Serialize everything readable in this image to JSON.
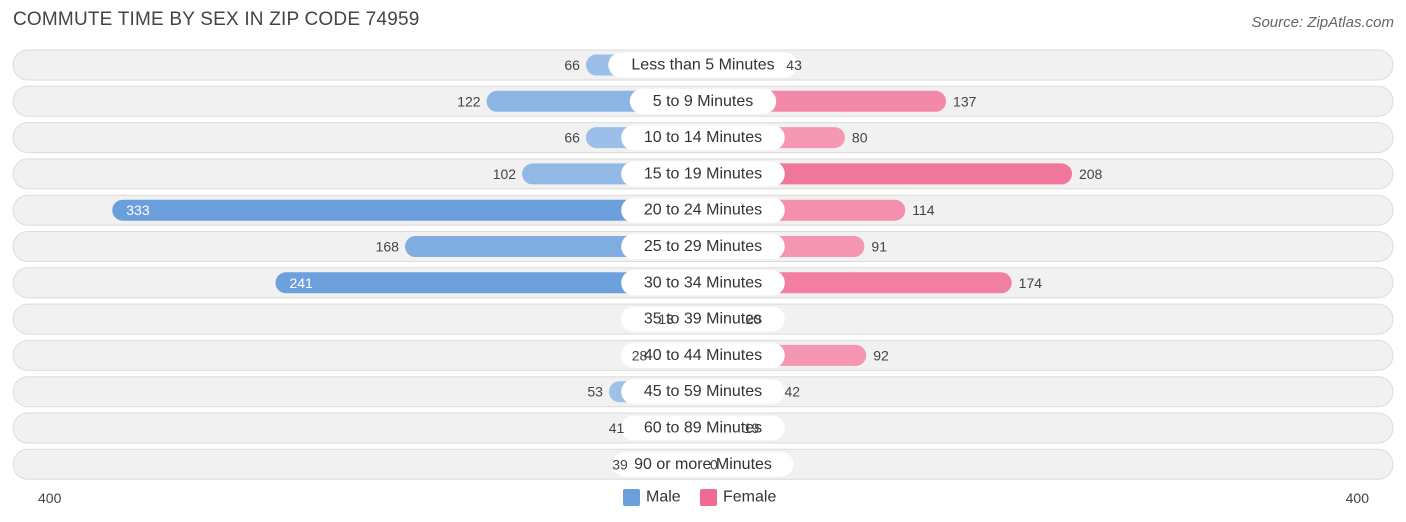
{
  "header": {
    "title": "COMMUTE TIME BY SEX IN ZIP CODE 74959",
    "source": "Source: ZipAtlas.com"
  },
  "chart_data": {
    "type": "bar",
    "orientation": "horizontal-diverging",
    "title": "COMMUTE TIME BY SEX IN ZIP CODE 74959",
    "categories": [
      "Less than 5 Minutes",
      "5 to 9 Minutes",
      "10 to 14 Minutes",
      "15 to 19 Minutes",
      "20 to 24 Minutes",
      "25 to 29 Minutes",
      "30 to 34 Minutes",
      "35 to 39 Minutes",
      "40 to 44 Minutes",
      "45 to 59 Minutes",
      "60 to 89 Minutes",
      "90 or more Minutes"
    ],
    "series": [
      {
        "name": "Male",
        "color": "#6a9fdc",
        "values": [
          66,
          122,
          66,
          102,
          333,
          168,
          241,
          13,
          28,
          53,
          41,
          39
        ]
      },
      {
        "name": "Female",
        "color": "#f06b93",
        "values": [
          43,
          137,
          80,
          208,
          114,
          91,
          174,
          20,
          92,
          42,
          19,
          0
        ]
      }
    ],
    "xlim": [
      -400,
      400
    ],
    "axis_labels": {
      "left": "400",
      "right": "400"
    },
    "legend": {
      "placement": "bottom-center",
      "entries": [
        "Male",
        "Female"
      ]
    }
  }
}
